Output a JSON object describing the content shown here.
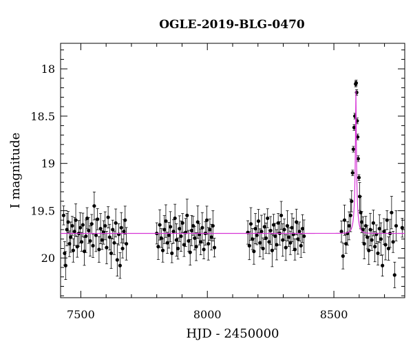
{
  "chart_data": {
    "type": "scatter",
    "title": "OGLE-2019-BLG-0470",
    "xlabel": "HJD - 2450000",
    "ylabel": "I magnitude",
    "xlim": [
      7420,
      8780
    ],
    "ylim": [
      20.42,
      17.73
    ],
    "y_inverted": true,
    "xticks": [
      7500,
      8000,
      8500
    ],
    "xtick_labels": [
      "7500",
      "8000",
      "8500"
    ],
    "yticks": [
      18,
      18.5,
      19,
      19.5,
      20
    ],
    "ytick_labels": [
      "18",
      "18.5",
      "19",
      "19.5",
      "20"
    ],
    "grid": false,
    "legend": "none",
    "baseline_mag": 19.74,
    "series": [
      {
        "points_color": "#000000",
        "model_color": "#d633d6",
        "points": [
          [
            7432,
            19.55
          ],
          [
            7436,
            19.95
          ],
          [
            7440,
            20.08
          ],
          [
            7445,
            19.7
          ],
          [
            7450,
            19.62
          ],
          [
            7455,
            19.85
          ],
          [
            7460,
            19.78
          ],
          [
            7466,
            19.66
          ],
          [
            7470,
            19.92
          ],
          [
            7475,
            19.72
          ],
          [
            7480,
            19.6
          ],
          [
            7486,
            19.88
          ],
          [
            7492,
            19.74
          ],
          [
            7498,
            19.68
          ],
          [
            7503,
            19.83
          ],
          [
            7508,
            19.65
          ],
          [
            7514,
            19.93
          ],
          [
            7520,
            19.77
          ],
          [
            7525,
            19.58
          ],
          [
            7531,
            19.71
          ],
          [
            7537,
            19.82
          ],
          [
            7543,
            19.64
          ],
          [
            7548,
            19.87
          ],
          [
            7553,
            19.45
          ],
          [
            7560,
            19.76
          ],
          [
            7566,
            19.59
          ],
          [
            7572,
            19.91
          ],
          [
            7578,
            19.69
          ],
          [
            7584,
            19.81
          ],
          [
            7590,
            19.73
          ],
          [
            7596,
            19.66
          ],
          [
            7602,
            19.89
          ],
          [
            7608,
            19.57
          ],
          [
            7614,
            19.78
          ],
          [
            7620,
            19.95
          ],
          [
            7626,
            19.7
          ],
          [
            7632,
            19.84
          ],
          [
            7638,
            19.63
          ],
          [
            7644,
            20.02
          ],
          [
            7650,
            19.75
          ],
          [
            7655,
            20.08
          ],
          [
            7660,
            19.68
          ],
          [
            7665,
            19.9
          ],
          [
            7670,
            19.72
          ],
          [
            7675,
            19.6
          ],
          [
            7680,
            19.85
          ],
          [
            7800,
            19.74
          ],
          [
            7806,
            19.88
          ],
          [
            7812,
            19.65
          ],
          [
            7818,
            19.79
          ],
          [
            7824,
            19.92
          ],
          [
            7830,
            19.7
          ],
          [
            7836,
            19.61
          ],
          [
            7842,
            19.84
          ],
          [
            7848,
            19.76
          ],
          [
            7854,
            19.67
          ],
          [
            7860,
            19.95
          ],
          [
            7866,
            19.72
          ],
          [
            7872,
            19.58
          ],
          [
            7878,
            19.81
          ],
          [
            7884,
            19.9
          ],
          [
            7890,
            19.69
          ],
          [
            7896,
            19.77
          ],
          [
            7902,
            19.63
          ],
          [
            7908,
            19.86
          ],
          [
            7914,
            19.73
          ],
          [
            7920,
            19.55
          ],
          [
            7926,
            19.82
          ],
          [
            7932,
            19.94
          ],
          [
            7938,
            19.71
          ],
          [
            7944,
            19.66
          ],
          [
            7950,
            19.79
          ],
          [
            7956,
            19.88
          ],
          [
            7962,
            19.62
          ],
          [
            7968,
            19.75
          ],
          [
            7974,
            19.83
          ],
          [
            7980,
            19.68
          ],
          [
            7986,
            19.91
          ],
          [
            7992,
            19.74
          ],
          [
            7998,
            19.6
          ],
          [
            8004,
            19.85
          ],
          [
            8010,
            19.7
          ],
          [
            8016,
            19.78
          ],
          [
            8022,
            19.66
          ],
          [
            8028,
            19.89
          ],
          [
            8160,
            19.73
          ],
          [
            8166,
            19.87
          ],
          [
            8172,
            19.64
          ],
          [
            8178,
            19.8
          ],
          [
            8184,
            19.93
          ],
          [
            8190,
            19.69
          ],
          [
            8196,
            19.76
          ],
          [
            8202,
            19.61
          ],
          [
            8208,
            19.84
          ],
          [
            8214,
            19.72
          ],
          [
            8220,
            19.9
          ],
          [
            8226,
            19.67
          ],
          [
            8232,
            19.79
          ],
          [
            8238,
            19.58
          ],
          [
            8244,
            19.83
          ],
          [
            8250,
            19.71
          ],
          [
            8256,
            19.92
          ],
          [
            8262,
            19.65
          ],
          [
            8268,
            19.77
          ],
          [
            8274,
            19.86
          ],
          [
            8280,
            19.63
          ],
          [
            8286,
            19.74
          ],
          [
            8292,
            19.55
          ],
          [
            8298,
            19.81
          ],
          [
            8304,
            19.7
          ],
          [
            8310,
            19.89
          ],
          [
            8316,
            19.66
          ],
          [
            8322,
            19.78
          ],
          [
            8328,
            19.84
          ],
          [
            8334,
            19.68
          ],
          [
            8340,
            19.75
          ],
          [
            8346,
            19.91
          ],
          [
            8352,
            19.62
          ],
          [
            8358,
            19.8
          ],
          [
            8364,
            19.72
          ],
          [
            8370,
            19.87
          ],
          [
            8376,
            19.69
          ],
          [
            8382,
            19.77
          ],
          [
            8530,
            19.72
          ],
          [
            8536,
            19.98
          ],
          [
            8542,
            19.6
          ],
          [
            8548,
            19.85
          ],
          [
            8554,
            19.74
          ],
          [
            8560,
            19.66
          ],
          [
            8566,
            19.55
          ],
          [
            8570,
            19.4
          ],
          [
            8574,
            19.1
          ],
          [
            8577,
            18.85
          ],
          [
            8580,
            18.62
          ],
          [
            8583,
            18.5
          ],
          [
            8586,
            18.16
          ],
          [
            8588,
            18.15
          ],
          [
            8590,
            18.25
          ],
          [
            8592,
            18.55
          ],
          [
            8594,
            18.72
          ],
          [
            8596,
            18.95
          ],
          [
            8599,
            19.15
          ],
          [
            8602,
            19.35
          ],
          [
            8606,
            19.52
          ],
          [
            8610,
            19.62
          ],
          [
            8615,
            19.7
          ],
          [
            8620,
            19.85
          ],
          [
            8626,
            19.66
          ],
          [
            8632,
            19.78
          ],
          [
            8638,
            19.92
          ],
          [
            8644,
            19.7
          ],
          [
            8650,
            19.81
          ],
          [
            8656,
            19.63
          ],
          [
            8662,
            19.88
          ],
          [
            8668,
            19.75
          ],
          [
            8674,
            19.95
          ],
          [
            8680,
            19.69
          ],
          [
            8686,
            19.8
          ],
          [
            8692,
            20.08
          ],
          [
            8698,
            19.72
          ],
          [
            8704,
            19.86
          ],
          [
            8710,
            19.6
          ],
          [
            8716,
            19.9
          ],
          [
            8722,
            19.74
          ],
          [
            8728,
            19.52
          ],
          [
            8734,
            19.83
          ],
          [
            8740,
            20.18
          ],
          [
            8746,
            19.66
          ],
          [
            8770,
            19.68
          ]
        ]
      }
    ]
  }
}
